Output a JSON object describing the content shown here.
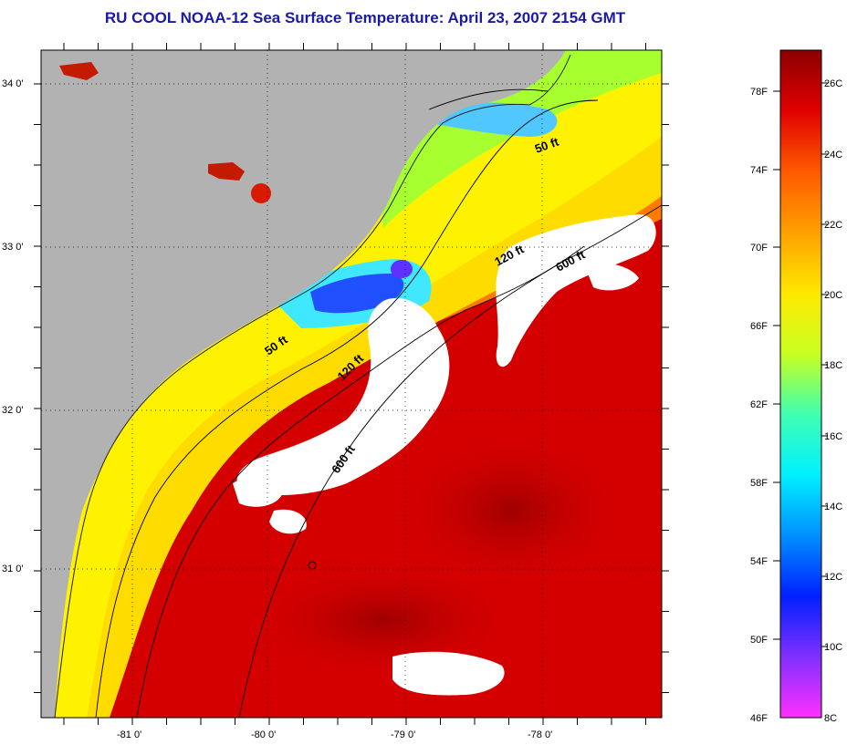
{
  "title": "RU COOL  NOAA-12  Sea Surface Temperature:  April 23, 2007 2154 GMT",
  "map": {
    "lon_ticks": [
      "-81 0'",
      "-80 0'",
      "-79 0'",
      "-78 0'"
    ],
    "lat_ticks": [
      "34 0'",
      "33 0'",
      "32 0'",
      "31 0'"
    ],
    "contour_labels": [
      {
        "id": "c50-north",
        "text": "50 ft"
      },
      {
        "id": "c120-north",
        "text": "120 ft"
      },
      {
        "id": "c600-north",
        "text": "600 ft"
      },
      {
        "id": "c50-south",
        "text": "50 ft"
      },
      {
        "id": "c120-south",
        "text": "120 ft"
      },
      {
        "id": "c600-south",
        "text": "600 ft"
      }
    ],
    "colors": {
      "land": "#b2b2b2",
      "cloud": "#ffffff",
      "warm": "#c80000",
      "coastal": "#ffe000"
    }
  },
  "colorbar": {
    "f_labels": [
      "78F",
      "74F",
      "70F",
      "66F",
      "62F",
      "58F",
      "54F",
      "50F",
      "46F"
    ],
    "c_labels": [
      "26C",
      "24C",
      "22C",
      "20C",
      "18C",
      "16C",
      "14C",
      "12C",
      "10C",
      "8C"
    ],
    "stops": [
      "#8b0000",
      "#e00000",
      "#ff5a00",
      "#ffa000",
      "#ffe800",
      "#c8ff20",
      "#40ffb0",
      "#00f0ff",
      "#0090ff",
      "#0020ff",
      "#8030ff",
      "#ff30ff"
    ]
  }
}
